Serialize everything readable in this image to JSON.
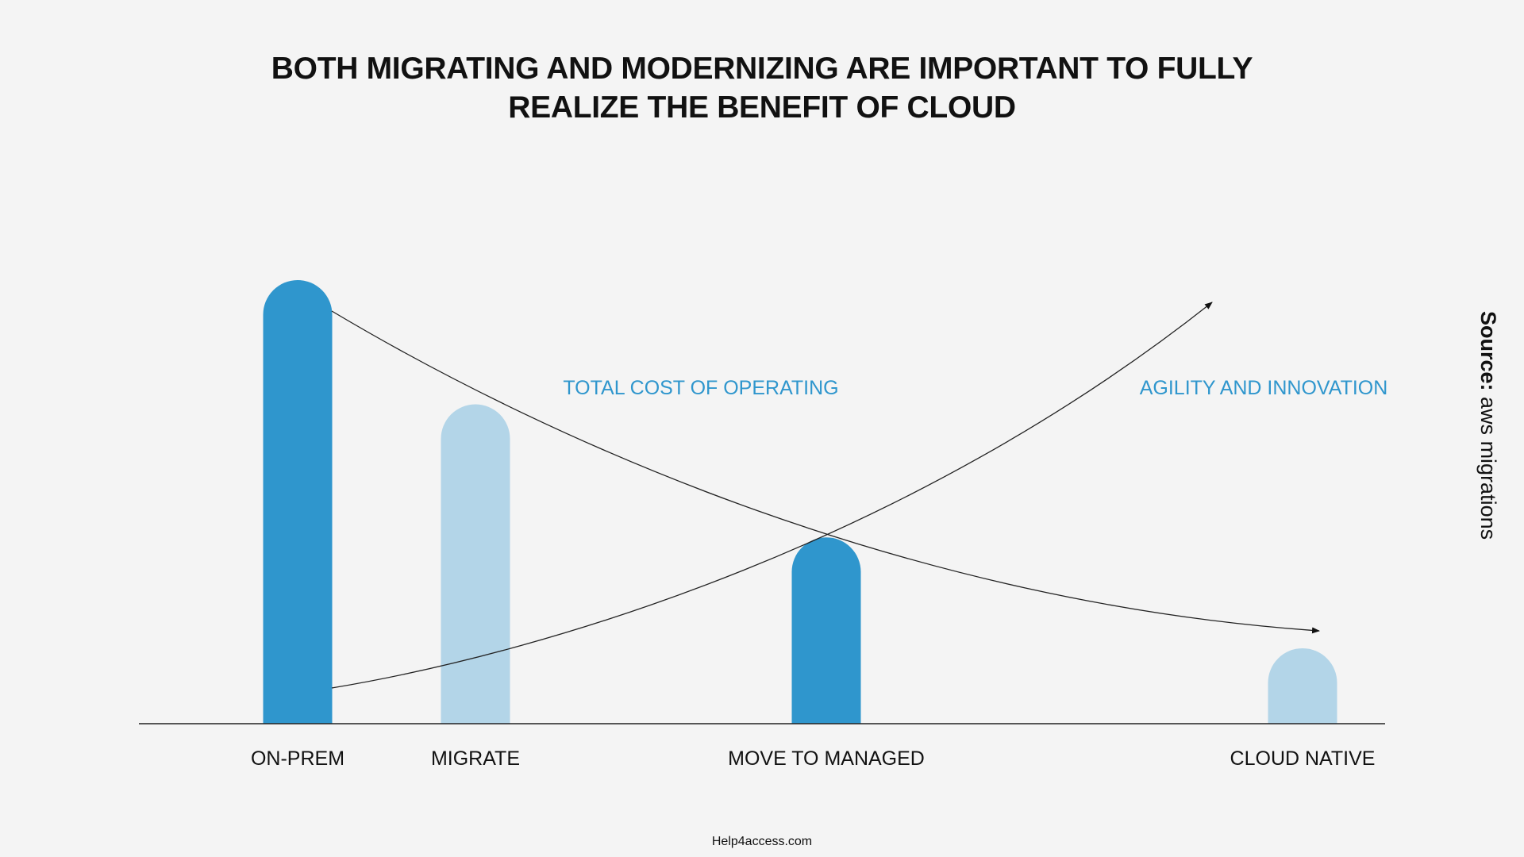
{
  "title_line1": "BOTH MIGRATING AND MODERNIZING ARE IMPORTANT TO FULLY",
  "title_line2": "REALIZE THE BENEFIT OF CLOUD",
  "source_label": "Source:",
  "source_value": "aws migrations",
  "footer": "Help4access.com",
  "colors": {
    "dark_bar": "#2f96cd",
    "light_bar": "#b3d5e8",
    "curve_label": "#2f96cd",
    "axis": "#222222",
    "background": "#f4f4f4"
  },
  "chart_data": {
    "type": "bar",
    "categories": [
      "ON-PREM",
      "MIGRATE",
      "MOVE TO MANAGED",
      "CLOUD NATIVE"
    ],
    "values": [
      100,
      72,
      42,
      17
    ],
    "bar_shades": [
      "dark",
      "light",
      "dark",
      "light"
    ],
    "ylim": [
      0,
      100
    ],
    "annotations": [
      {
        "text": "TOTAL COST OF OPERATING",
        "trend": "decreasing"
      },
      {
        "text": "AGILITY AND INNOVATION",
        "trend": "increasing"
      }
    ],
    "grid": false,
    "legend": "none"
  }
}
